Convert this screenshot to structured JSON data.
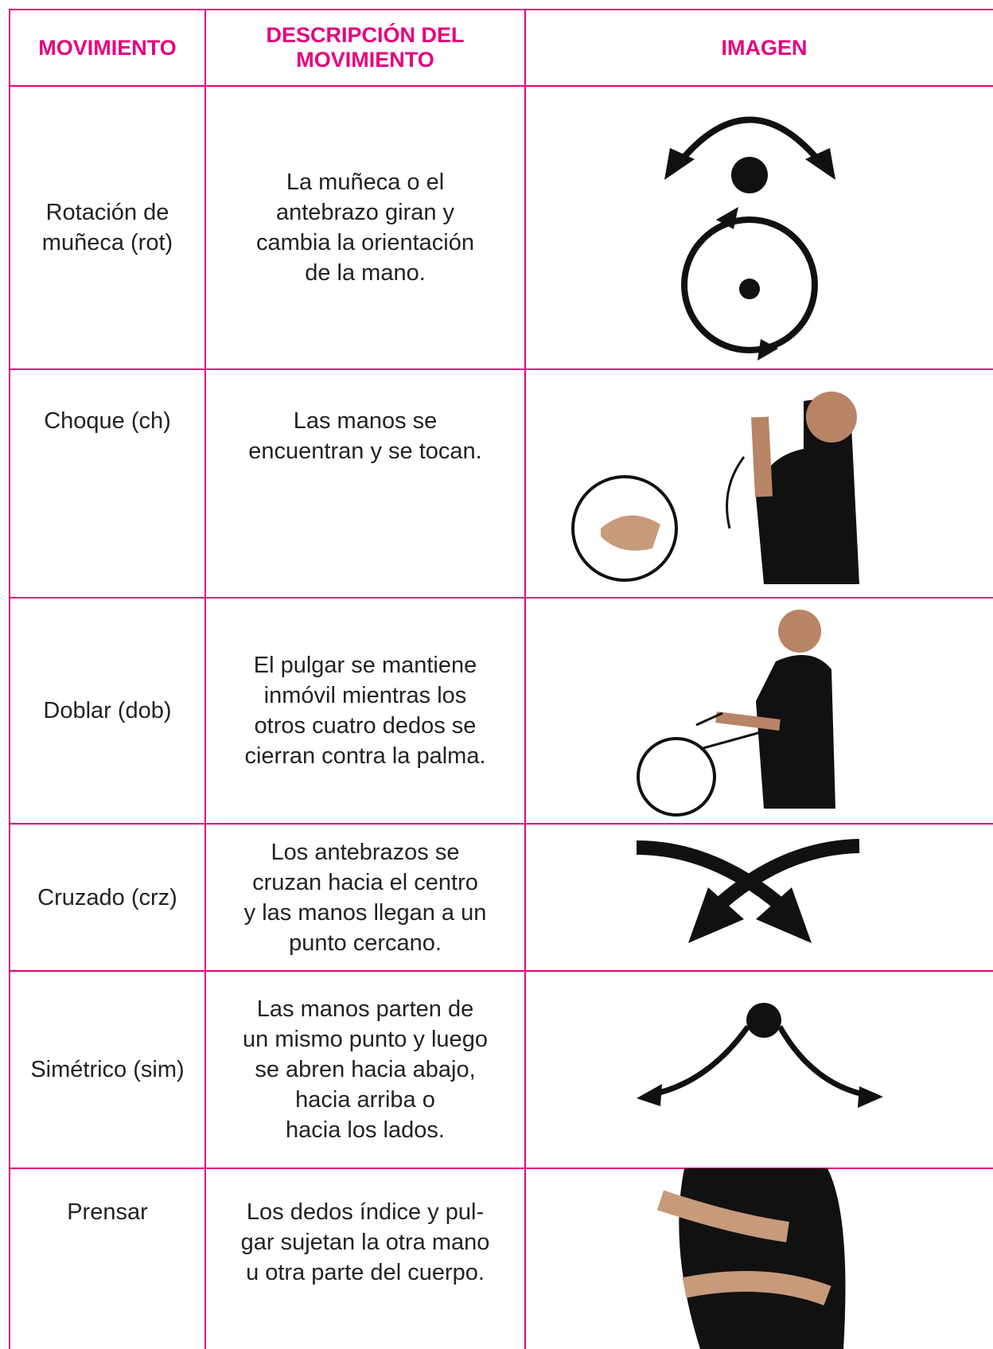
{
  "table": {
    "header": [
      "MOVIMIENTO",
      [
        "DESCRIPCIÓN DEL",
        "MOVIMIENTO"
      ],
      "IMAGEN"
    ],
    "rows": [
      {
        "movement": [
          "Rotación de",
          "muñeca (rot)"
        ],
        "description": [
          "La muñeca o el",
          "antebrazo giran y",
          "cambia la orientación",
          "de la mano."
        ]
      },
      {
        "movement": [
          "Choque (ch)"
        ],
        "description": [
          "Las manos se",
          "encuentran y se tocan."
        ]
      },
      {
        "movement": [
          "Doblar (dob)"
        ],
        "description": [
          "El pulgar se mantiene",
          "inmóvil mientras los",
          "otros cuatro dedos se",
          "cierran contra  la palma."
        ]
      },
      {
        "movement": [
          "Cruzado (crz)"
        ],
        "description": [
          "Los antebrazos se",
          "cruzan hacia el centro",
          "y las manos llegan a un",
          "punto cercano."
        ]
      },
      {
        "movement": [
          "Simétrico  (sim)"
        ],
        "description": [
          "Las manos parten de",
          "un mismo punto y luego",
          "se abren hacia abajo,",
          "hacia arriba o",
          "hacia los lados."
        ]
      },
      {
        "movement": [
          "Prensar"
        ],
        "description": [
          "Los dedos índice y pul-",
          "gar sujetan la otra mano",
          "u otra parte del cuerpo."
        ]
      }
    ]
  }
}
